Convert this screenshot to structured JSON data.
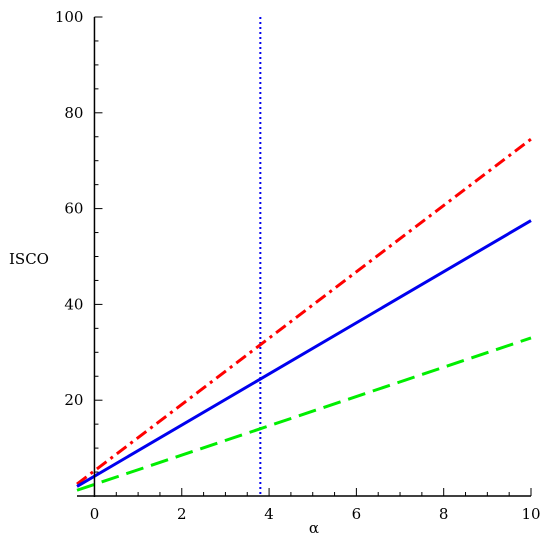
{
  "chart_data": {
    "type": "line",
    "xlabel": "α",
    "ylabel": "ISCO",
    "xlim": [
      -0.4,
      10
    ],
    "ylim": [
      0,
      100
    ],
    "x_ticks": [
      0,
      2,
      4,
      6,
      8,
      10
    ],
    "y_ticks": [
      20,
      40,
      60,
      80,
      100
    ],
    "series": [
      {
        "x": [
          -0.4,
          10
        ],
        "y": [
          2.5,
          74.5
        ],
        "color": "#ff0000",
        "style": "dash-dot"
      },
      {
        "x": [
          -0.4,
          10
        ],
        "y": [
          2.0,
          57.5
        ],
        "color": "#0000ee",
        "style": "solid"
      },
      {
        "x": [
          -0.4,
          10
        ],
        "y": [
          1.2,
          33.0
        ],
        "color": "#00ee00",
        "style": "dashed"
      }
    ],
    "vertical_line": {
      "x": 3.8,
      "color": "#0000ee",
      "style": "dotted"
    }
  }
}
